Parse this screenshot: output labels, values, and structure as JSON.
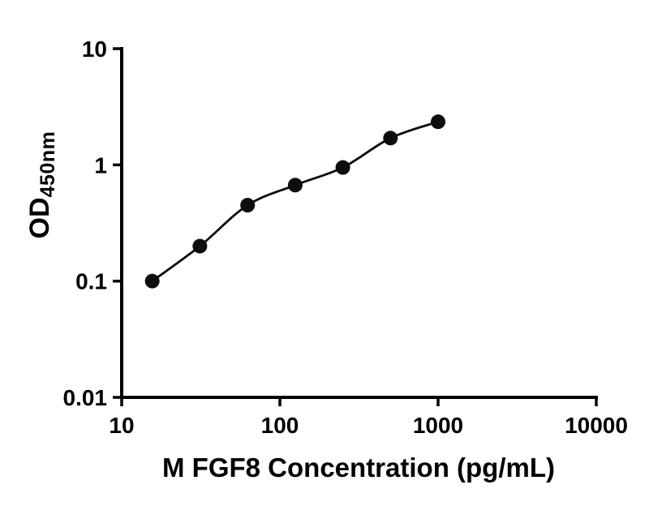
{
  "chart_data": {
    "type": "scatter",
    "curve": "smooth-through-points",
    "title": "",
    "xlabel": "M FGF8 Concentration (pg/mL)",
    "ylabel_main": "OD",
    "ylabel_sub": "450nm",
    "xscale": "log",
    "yscale": "log",
    "xlim": [
      10,
      10000
    ],
    "ylim": [
      0.01,
      10
    ],
    "x": [
      15.6,
      31.2,
      62.5,
      125,
      250,
      500,
      1000
    ],
    "y": [
      0.1,
      0.2,
      0.45,
      0.67,
      0.95,
      1.7,
      2.35
    ],
    "x_ticks": [
      "10",
      "100",
      "1000",
      "10000"
    ],
    "x_tick_values": [
      10,
      100,
      1000,
      10000
    ],
    "y_ticks": [
      "0.01",
      "0.1",
      "1",
      "10"
    ],
    "y_tick_values": [
      0.01,
      0.1,
      1,
      10
    ],
    "grid": "off",
    "legend": "none",
    "axis_color": "#000000",
    "point_color": "#0d0d0d",
    "line_color": "#0d0d0d",
    "background": "#ffffff"
  }
}
